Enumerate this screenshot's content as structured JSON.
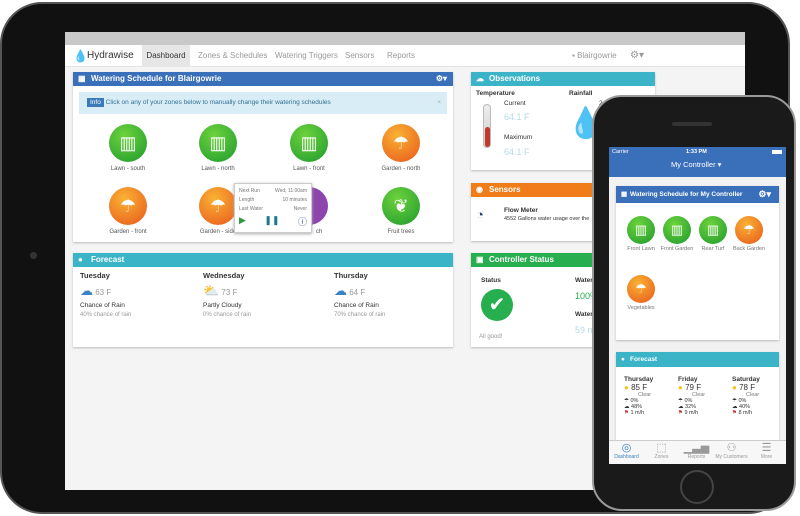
{
  "ipad": {
    "status": {
      "title": "Controller Status",
      "status_label": "Status",
      "ok": "All good!",
      "water_label": "Water S",
      "water": "100%",
      "watering_label": "Wateri",
      "watering": "59 m"
    },
    "brand": "Hydrawise",
    "nav": [
      "Dashboard",
      "Zones & Schedules",
      "Watering Triggers",
      "Sensors",
      "Reports"
    ],
    "active_nav": "Dashboard",
    "controller": "Blairgowrie",
    "schedule": {
      "title": "Watering Schedule for Blairgowrie",
      "info_badge": "Info",
      "info_text": "Click on any of your zones below to manually change their watering schedules",
      "zones": [
        {
          "name": "Lawn - south",
          "type": "lawn"
        },
        {
          "name": "Lawn - north",
          "type": "lawn"
        },
        {
          "name": "Lawn - front",
          "type": "lawn"
        },
        {
          "name": "Garden - north",
          "type": "garden"
        },
        {
          "name": "Garden - front",
          "type": "garden"
        },
        {
          "name": "Garden - side",
          "type": "garden"
        },
        {
          "name": "ch",
          "type": "other"
        },
        {
          "name": "Fruit trees",
          "type": "tree"
        }
      ],
      "popover": {
        "next_run_label": "Next Run",
        "next_run": "Wed, 11:00am",
        "length_label": "Length",
        "length": "10 minutes",
        "last_label": "Last Water",
        "last": "Never"
      }
    },
    "forecast": {
      "title": "Forecast",
      "days": [
        {
          "day": "Tuesday",
          "temp": "63 F",
          "cond": "Chance of Rain",
          "rain": "40% chance of rain"
        },
        {
          "day": "Wednesday",
          "temp": "73 F",
          "cond": "Partly Cloudy",
          "rain": "0% chance of rain"
        },
        {
          "day": "Thursday",
          "temp": "64 F",
          "cond": "Chance of Rain",
          "rain": "70% chance of rain"
        }
      ]
    },
    "observations": {
      "title": "Observations",
      "temp_label": "Temperature",
      "current_label": "Current",
      "current": "64.1 F",
      "max_label": "Maximum",
      "max": "64.1 F",
      "rain_label": "Rainfall",
      "rain_partial": "24"
    },
    "sensors": {
      "title": "Sensors",
      "name": "Flow Meter",
      "text": "4552 Gallons water usage over the"
    }
  },
  "iphone": {
    "status": {
      "carrier": "Carrier",
      "time": "1:33 PM"
    },
    "controller": "My Controller",
    "schedule": {
      "title": "Watering Schedule for My Controller",
      "zones": [
        {
          "name": "Front Lawn",
          "type": "lawn"
        },
        {
          "name": "Front Garden",
          "type": "lawn"
        },
        {
          "name": "Rear Turf",
          "type": "lawn"
        },
        {
          "name": "Back Garden",
          "type": "garden"
        },
        {
          "name": "Vegetables",
          "type": "garden"
        }
      ]
    },
    "forecast": {
      "title": "Forecast",
      "days": [
        {
          "day": "Thursday",
          "temp": "85 F",
          "cond": "Clear",
          "rain": "0%",
          "humidity": "48%",
          "wind": "1 m/h"
        },
        {
          "day": "Friday",
          "temp": "79 F",
          "cond": "Clear",
          "rain": "0%",
          "humidity": "32%",
          "wind": "9 m/h"
        },
        {
          "day": "Saturday",
          "temp": "78 F",
          "cond": "Clear",
          "rain": "0%",
          "humidity": "40%",
          "wind": "8 m/h"
        }
      ]
    },
    "tabs": [
      "Dashboard",
      "Zones",
      "Reports",
      "My Customers",
      "More"
    ]
  },
  "colors": {
    "blue": "#3a6fba",
    "teal": "#3bb4c8",
    "orange": "#f07d1a",
    "green": "#27ae4f"
  }
}
